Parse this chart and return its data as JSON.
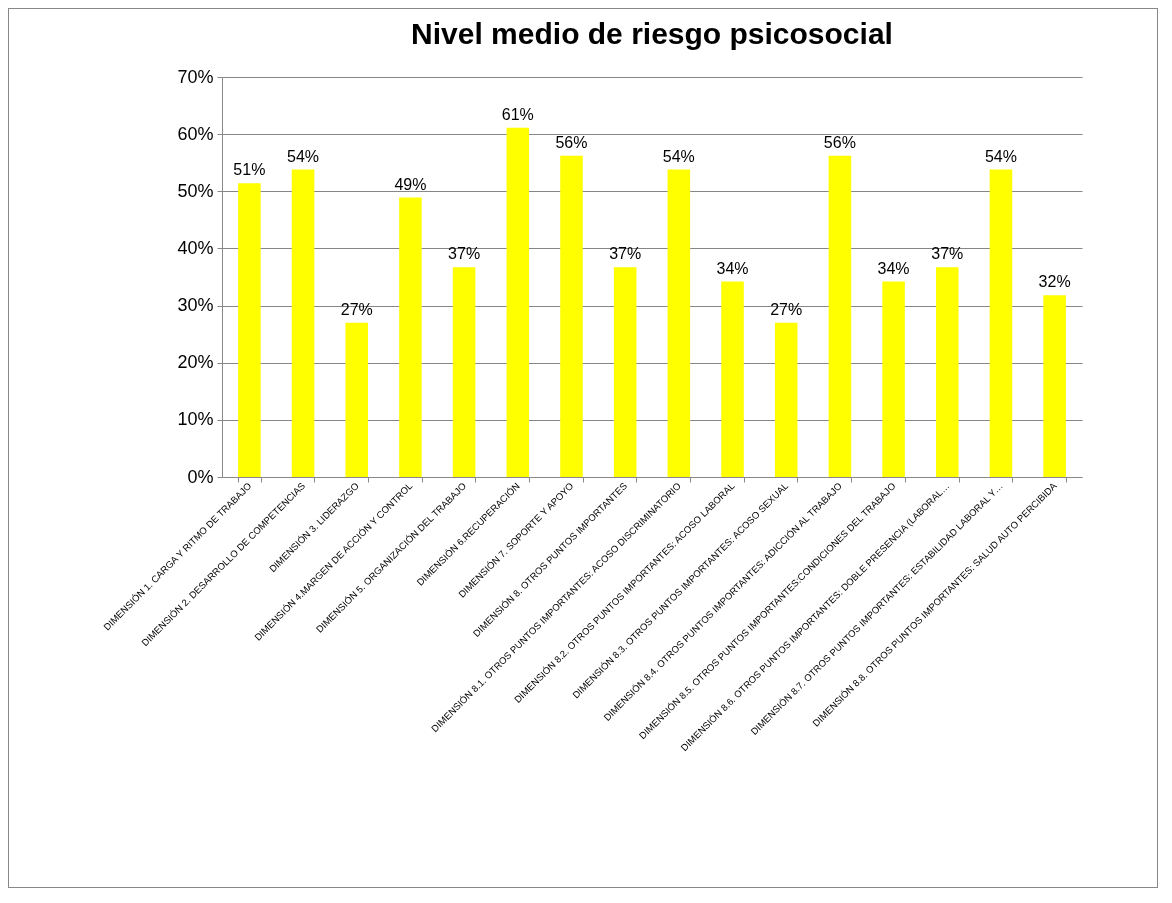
{
  "chart_data": {
    "type": "bar",
    "title": "Nivel medio de riesgo psicosocial",
    "categories": [
      "DIMENSIÓN 1. CARGA Y RITMO DE TRABAJO",
      "DIMENSIÓN 2. DESARROLLO DE COMPETENCIAS",
      "DIMENSIÓN 3. LIDERAZGO",
      "DIMENSIÓN 4.MARGEN DE ACCIÓN Y CONTROL",
      "DIMENSIÓN 5. ORGANIZACIÓN DEL TRABAJO",
      "DIMENSIÓN 6.RECUPERACIÓN",
      "DIMENSIÓN 7. SOPORTE Y APOYO",
      "DIMENSIÓN 8. OTROS PUNTOS IMPORTANTES",
      "DIMENSIÓN 8.1. OTROS PUNTOS IMPORTANTES: ACOSO DISCRIMINATORIO",
      "DIMENSIÓN 8.2. OTROS PUNTOS IMPORTANTES: ACOSO LABORAL",
      "DIMENSIÓN 8.3. OTROS PUNTOS IMPORTANTES: ACOSO SEXUAL",
      "DIMENSIÓN 8.4. OTROS PUNTOS IMPORTANTES: ADICCIÓN AL TRABAJO",
      "DIMENSIÓN 8.5. OTROS PUNTOS IMPORTANTES:CONDICIONES DEL  TRABAJO",
      "DIMENSIÓN 8.6. OTROS PUNTOS IMPORTANTES: DOBLE PRESENCIA (LABORAL…",
      "DIMENSIÓN 8.7. OTROS PUNTOS IMPORTANTES: ESTABILIDAD LABORAL Y…",
      "DIMENSIÓN 8.8. OTROS PUNTOS IMPORTANTES: SALUD AUTO PERCIBIDA"
    ],
    "values": [
      51.4,
      53.8,
      27,
      48.9,
      36.7,
      61.1,
      56.2,
      36.7,
      53.8,
      34.2,
      27,
      56.2,
      34.2,
      36.7,
      53.8,
      31.8
    ],
    "value_labels": [
      "51%",
      "54%",
      "27%",
      "49%",
      "37%",
      "61%",
      "56%",
      "37%",
      "54%",
      "34%",
      "27%",
      "56%",
      "34%",
      "37%",
      "54%",
      "32%"
    ],
    "color": "#ffff00",
    "ylim": [
      0,
      70
    ],
    "yticks": [
      {
        "value": 0,
        "label": "0%"
      },
      {
        "value": 10,
        "label": "10%"
      },
      {
        "value": 20,
        "label": "20%"
      },
      {
        "value": 30,
        "label": "30%"
      },
      {
        "value": 40,
        "label": "40%"
      },
      {
        "value": 50,
        "label": "50%"
      },
      {
        "value": 60,
        "label": "60%"
      },
      {
        "value": 70,
        "label": "70%"
      }
    ],
    "grid": "y"
  }
}
